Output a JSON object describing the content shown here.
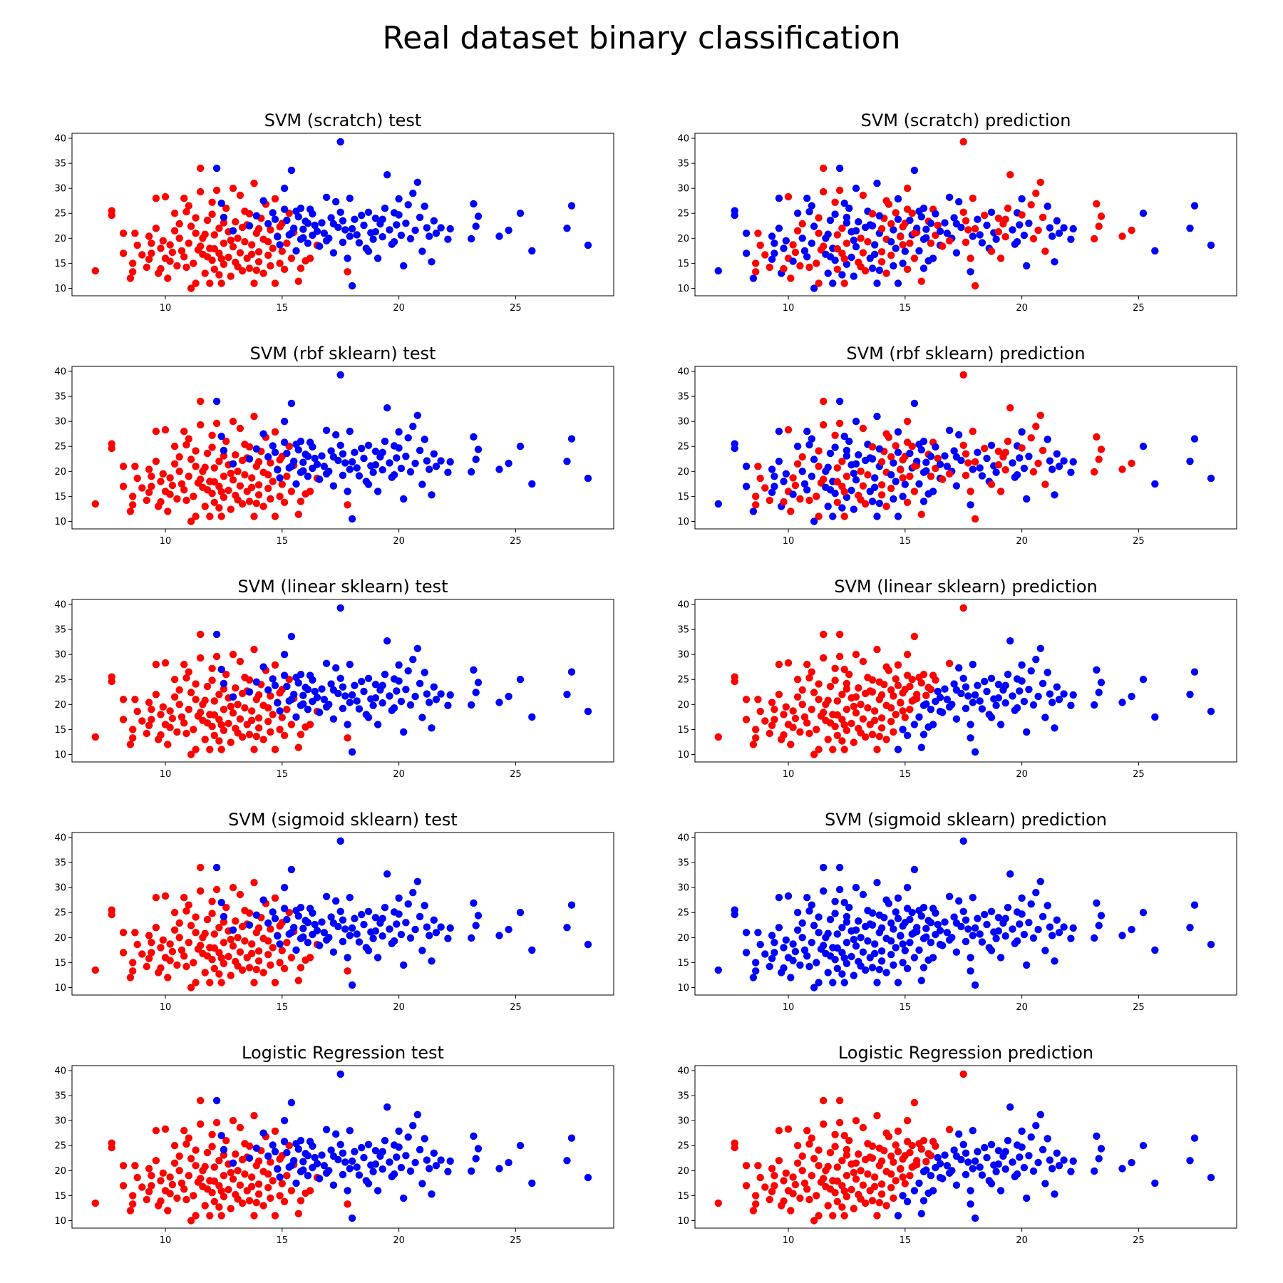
{
  "figure": {
    "title": "Real dataset binary classification"
  },
  "colors": {
    "class_0": "#ff0000",
    "class_1": "#0000ff"
  },
  "chart_data": [
    {
      "type": "scatter",
      "title": "SVM (scratch) test",
      "mode": "truth",
      "xlim": [
        6,
        29.2
      ],
      "ylim": [
        8.5,
        41
      ],
      "xticks": [
        10,
        15,
        20,
        25
      ],
      "yticks": [
        10,
        15,
        20,
        25,
        30,
        35,
        40
      ],
      "grid": false
    },
    {
      "type": "scatter",
      "title": "SVM (scratch) prediction",
      "mode": "random",
      "xlim": [
        6,
        29.2
      ],
      "ylim": [
        8.5,
        41
      ],
      "xticks": [
        10,
        15,
        20,
        25
      ],
      "yticks": [
        10,
        15,
        20,
        25,
        30,
        35,
        40
      ],
      "grid": false
    },
    {
      "type": "scatter",
      "title": "SVM (rbf sklearn) test",
      "mode": "truth",
      "xlim": [
        6,
        29.2
      ],
      "ylim": [
        8.5,
        41
      ],
      "xticks": [
        10,
        15,
        20,
        25
      ],
      "yticks": [
        10,
        15,
        20,
        25,
        30,
        35,
        40
      ],
      "grid": false
    },
    {
      "type": "scatter",
      "title": "SVM (rbf sklearn) prediction",
      "mode": "random",
      "xlim": [
        6,
        29.2
      ],
      "ylim": [
        8.5,
        41
      ],
      "xticks": [
        10,
        15,
        20,
        25
      ],
      "yticks": [
        10,
        15,
        20,
        25,
        30,
        35,
        40
      ],
      "grid": false
    },
    {
      "type": "scatter",
      "title": "SVM (linear sklearn) test",
      "mode": "truth",
      "xlim": [
        6,
        29.2
      ],
      "ylim": [
        8.5,
        41
      ],
      "xticks": [
        10,
        15,
        20,
        25
      ],
      "yticks": [
        10,
        15,
        20,
        25,
        30,
        35,
        40
      ],
      "grid": false
    },
    {
      "type": "scatter",
      "title": "SVM (linear sklearn) prediction",
      "mode": "linear",
      "xlim": [
        6,
        29.2
      ],
      "ylim": [
        8.5,
        41
      ],
      "xticks": [
        10,
        15,
        20,
        25
      ],
      "yticks": [
        10,
        15,
        20,
        25,
        30,
        35,
        40
      ],
      "grid": false
    },
    {
      "type": "scatter",
      "title": "SVM (sigmoid sklearn) test",
      "mode": "truth",
      "xlim": [
        6,
        29.2
      ],
      "ylim": [
        8.5,
        41
      ],
      "xticks": [
        10,
        15,
        20,
        25
      ],
      "yticks": [
        10,
        15,
        20,
        25,
        30,
        35,
        40
      ],
      "grid": false
    },
    {
      "type": "scatter",
      "title": "SVM (sigmoid sklearn) prediction",
      "mode": "all_blue",
      "xlim": [
        6,
        29.2
      ],
      "ylim": [
        8.5,
        41
      ],
      "xticks": [
        10,
        15,
        20,
        25
      ],
      "yticks": [
        10,
        15,
        20,
        25,
        30,
        35,
        40
      ],
      "grid": false
    },
    {
      "type": "scatter",
      "title": "Logistic Regression test",
      "mode": "truth",
      "xlim": [
        6,
        29.2
      ],
      "ylim": [
        8.5,
        41
      ],
      "xticks": [
        10,
        15,
        20,
        25
      ],
      "yticks": [
        10,
        15,
        20,
        25,
        30,
        35,
        40
      ],
      "grid": false
    },
    {
      "type": "scatter",
      "title": "Logistic Regression prediction",
      "mode": "linear",
      "xlim": [
        6,
        29.2
      ],
      "ylim": [
        8.5,
        41
      ],
      "xticks": [
        10,
        15,
        20,
        25
      ],
      "yticks": [
        10,
        15,
        20,
        25,
        30,
        35,
        40
      ],
      "grid": false
    }
  ],
  "points": [
    [
      7.0,
      13.5,
      0
    ],
    [
      7.7,
      25.5,
      0
    ],
    [
      7.7,
      24.6,
      0
    ],
    [
      8.2,
      21.0,
      0
    ],
    [
      8.2,
      17.0,
      0
    ],
    [
      8.5,
      12.0,
      0
    ],
    [
      8.6,
      13.3,
      0
    ],
    [
      8.6,
      15.0,
      0
    ],
    [
      8.7,
      21.0,
      0
    ],
    [
      8.8,
      18.6,
      0
    ],
    [
      9.0,
      16.7,
      0
    ],
    [
      9.2,
      14.2,
      0
    ],
    [
      9.3,
      15.8,
      0
    ],
    [
      9.4,
      19.0,
      0
    ],
    [
      9.4,
      17.0,
      0
    ],
    [
      9.6,
      22.0,
      0
    ],
    [
      9.6,
      28.0,
      0
    ],
    [
      9.7,
      13.0,
      0
    ],
    [
      9.8,
      18.0,
      0
    ],
    [
      9.9,
      19.5,
      0
    ],
    [
      10.0,
      28.3,
      0
    ],
    [
      10.0,
      16.0,
      0
    ],
    [
      10.1,
      12.0,
      0
    ],
    [
      10.2,
      18.7,
      0
    ],
    [
      10.3,
      17.2,
      0
    ],
    [
      10.4,
      21.5,
      0
    ],
    [
      10.5,
      14.5,
      0
    ],
    [
      10.6,
      20.0,
      0
    ],
    [
      10.7,
      17.5,
      0
    ],
    [
      10.8,
      28.0,
      0
    ],
    [
      10.8,
      16.3,
      0
    ],
    [
      10.9,
      25.3,
      0
    ],
    [
      11.0,
      19.0,
      0
    ],
    [
      11.1,
      10.0,
      0
    ],
    [
      11.1,
      22.4,
      0
    ],
    [
      11.2,
      15.0,
      0
    ],
    [
      11.3,
      21.0,
      0
    ],
    [
      11.3,
      11.0,
      0
    ],
    [
      11.4,
      17.7,
      0
    ],
    [
      11.5,
      34.0,
      0
    ],
    [
      11.5,
      29.3,
      0
    ],
    [
      11.6,
      20.0,
      0
    ],
    [
      11.6,
      16.8,
      0
    ],
    [
      11.7,
      13.0,
      0
    ],
    [
      11.8,
      23.6,
      0
    ],
    [
      11.9,
      11.0,
      0
    ],
    [
      11.9,
      18.0,
      0
    ],
    [
      12.0,
      24.8,
      0
    ],
    [
      12.0,
      15.6,
      0
    ],
    [
      12.1,
      20.7,
      0
    ],
    [
      12.1,
      13.8,
      0
    ],
    [
      12.2,
      29.6,
      0
    ],
    [
      12.3,
      17.0,
      0
    ],
    [
      12.3,
      22.0,
      0
    ],
    [
      12.4,
      11.0,
      0
    ],
    [
      12.5,
      19.0,
      0
    ],
    [
      12.5,
      14.8,
      0
    ],
    [
      12.6,
      26.0,
      0
    ],
    [
      12.7,
      16.2,
      0
    ],
    [
      12.7,
      21.3,
      0
    ],
    [
      12.8,
      12.4,
      0
    ],
    [
      12.9,
      30.0,
      0
    ],
    [
      12.9,
      18.3,
      0
    ],
    [
      13.0,
      23.3,
      0
    ],
    [
      13.0,
      15.2,
      0
    ],
    [
      13.1,
      20.0,
      0
    ],
    [
      13.2,
      17.1,
      0
    ],
    [
      13.2,
      28.6,
      0
    ],
    [
      13.3,
      13.5,
      0
    ],
    [
      13.4,
      19.3,
      0
    ],
    [
      13.4,
      25.4,
      0
    ],
    [
      13.5,
      16.0,
      0
    ],
    [
      13.5,
      22.7,
      0
    ],
    [
      13.6,
      14.0,
      0
    ],
    [
      13.7,
      18.7,
      0
    ],
    [
      13.8,
      31.0,
      0
    ],
    [
      13.8,
      11.0,
      0
    ],
    [
      13.9,
      21.0,
      0
    ],
    [
      14.0,
      15.3,
      0
    ],
    [
      14.0,
      17.3,
      0
    ],
    [
      14.1,
      24.0,
      0
    ],
    [
      14.2,
      13.0,
      0
    ],
    [
      14.2,
      19.8,
      0
    ],
    [
      14.3,
      26.8,
      0
    ],
    [
      14.4,
      16.6,
      0
    ],
    [
      14.5,
      21.7,
      0
    ],
    [
      14.5,
      14.5,
      0
    ],
    [
      14.6,
      18.0,
      0
    ],
    [
      14.7,
      27.9,
      0
    ],
    [
      14.7,
      11.0,
      0
    ],
    [
      14.8,
      20.4,
      0
    ],
    [
      14.9,
      15.0,
      0
    ],
    [
      15.0,
      17.4,
      0
    ],
    [
      15.0,
      23.0,
      0
    ],
    [
      15.1,
      13.8,
      0
    ],
    [
      15.2,
      19.0,
      0
    ],
    [
      15.4,
      16.0,
      0
    ],
    [
      15.5,
      21.2,
      0
    ],
    [
      15.7,
      11.4,
      0
    ],
    [
      15.8,
      14.0,
      0
    ],
    [
      16.0,
      15.5,
      0
    ],
    [
      16.2,
      16.0,
      0
    ],
    [
      16.5,
      18.6,
      0
    ],
    [
      17.8,
      13.3,
      0
    ],
    [
      10.4,
      25.0,
      0
    ],
    [
      11.0,
      26.5,
      0
    ],
    [
      9.3,
      20.4,
      0
    ],
    [
      12.0,
      27.2,
      0
    ],
    [
      13.6,
      24.9,
      0
    ],
    [
      10.9,
      14.2,
      0
    ],
    [
      11.5,
      18.4,
      0
    ],
    [
      12.4,
      15.9,
      0
    ],
    [
      13.1,
      14.3,
      0
    ],
    [
      14.0,
      21.9,
      0
    ],
    [
      12.8,
      19.6,
      0
    ],
    [
      11.8,
      16.3,
      0
    ],
    [
      10.2,
      15.4,
      0
    ],
    [
      13.7,
      16.8,
      0
    ],
    [
      12.5,
      23.1,
      0
    ],
    [
      14.4,
      19.3,
      0
    ],
    [
      12.3,
      12.7,
      0
    ],
    [
      13.9,
      13.6,
      0
    ],
    [
      11.3,
      24.1,
      0
    ],
    [
      14.9,
      22.3,
      0
    ],
    [
      10.6,
      22.9,
      0
    ],
    [
      9.8,
      13.9,
      0
    ],
    [
      15.3,
      25.0,
      0
    ],
    [
      12.1,
      17.9,
      0
    ],
    [
      11.7,
      20.8,
      0
    ],
    [
      13.3,
      22.2,
      0
    ],
    [
      12.2,
      34.0,
      1
    ],
    [
      12.4,
      27.0,
      1
    ],
    [
      12.5,
      24.2,
      1
    ],
    [
      12.9,
      21.5,
      1
    ],
    [
      13.6,
      22.5,
      1
    ],
    [
      13.9,
      24.5,
      1
    ],
    [
      14.2,
      27.5,
      1
    ],
    [
      14.4,
      22.9,
      1
    ],
    [
      14.6,
      25.1,
      1
    ],
    [
      14.8,
      20.3,
      1
    ],
    [
      14.9,
      18.7,
      1
    ],
    [
      15.1,
      25.8,
      1
    ],
    [
      15.1,
      30.0,
      1
    ],
    [
      15.2,
      23.6,
      1
    ],
    [
      15.3,
      20.7,
      1
    ],
    [
      15.4,
      33.6,
      1
    ],
    [
      15.5,
      22.0,
      1
    ],
    [
      15.6,
      17.5,
      1
    ],
    [
      15.7,
      24.3,
      1
    ],
    [
      15.8,
      19.8,
      1
    ],
    [
      15.9,
      21.8,
      1
    ],
    [
      16.0,
      23.4,
      1
    ],
    [
      16.1,
      19.0,
      1
    ],
    [
      16.2,
      25.8,
      1
    ],
    [
      16.3,
      20.6,
      1
    ],
    [
      16.4,
      22.6,
      1
    ],
    [
      16.6,
      18.4,
      1
    ],
    [
      16.7,
      23.1,
      1
    ],
    [
      16.8,
      21.0,
      1
    ],
    [
      16.9,
      28.2,
      1
    ],
    [
      17.0,
      20.0,
      1
    ],
    [
      17.1,
      24.1,
      1
    ],
    [
      17.2,
      17.1,
      1
    ],
    [
      17.3,
      27.3,
      1
    ],
    [
      17.4,
      22.2,
      1
    ],
    [
      17.5,
      39.3,
      1
    ],
    [
      17.5,
      25.2,
      1
    ],
    [
      17.6,
      19.2,
      1
    ],
    [
      17.7,
      21.7,
      1
    ],
    [
      17.8,
      16.0,
      1
    ],
    [
      17.9,
      28.0,
      1
    ],
    [
      18.0,
      10.5,
      1
    ],
    [
      18.1,
      23.8,
      1
    ],
    [
      18.2,
      20.7,
      1
    ],
    [
      18.3,
      19.1,
      1
    ],
    [
      18.5,
      22.6,
      1
    ],
    [
      18.6,
      18.0,
      1
    ],
    [
      18.7,
      25.2,
      1
    ],
    [
      18.8,
      21.1,
      1
    ],
    [
      18.9,
      19.8,
      1
    ],
    [
      19.0,
      24.0,
      1
    ],
    [
      19.1,
      16.0,
      1
    ],
    [
      19.2,
      22.9,
      1
    ],
    [
      19.3,
      20.3,
      1
    ],
    [
      19.4,
      26.0,
      1
    ],
    [
      19.5,
      32.7,
      1
    ],
    [
      19.6,
      21.7,
      1
    ],
    [
      19.7,
      18.8,
      1
    ],
    [
      19.8,
      25.1,
      1
    ],
    [
      19.9,
      22.7,
      1
    ],
    [
      20.0,
      27.9,
      1
    ],
    [
      20.1,
      20.6,
      1
    ],
    [
      20.2,
      14.5,
      1
    ],
    [
      20.3,
      23.0,
      1
    ],
    [
      20.4,
      26.7,
      1
    ],
    [
      20.5,
      19.9,
      1
    ],
    [
      20.6,
      29.0,
      1
    ],
    [
      20.7,
      21.6,
      1
    ],
    [
      20.8,
      31.2,
      1
    ],
    [
      20.9,
      24.2,
      1
    ],
    [
      21.0,
      17.4,
      1
    ],
    [
      21.1,
      26.4,
      1
    ],
    [
      21.2,
      22.1,
      1
    ],
    [
      21.3,
      20.4,
      1
    ],
    [
      21.4,
      15.3,
      1
    ],
    [
      21.6,
      21.0,
      1
    ],
    [
      21.8,
      22.1,
      1
    ],
    [
      22.1,
      19.8,
      1
    ],
    [
      22.2,
      21.9,
      1
    ],
    [
      23.1,
      19.9,
      1
    ],
    [
      23.2,
      26.9,
      1
    ],
    [
      23.3,
      22.4,
      1
    ],
    [
      23.4,
      24.4,
      1
    ],
    [
      24.3,
      20.4,
      1
    ],
    [
      24.7,
      21.6,
      1
    ],
    [
      25.2,
      25.0,
      1
    ],
    [
      25.7,
      17.5,
      1
    ],
    [
      27.2,
      22.0,
      1
    ],
    [
      27.4,
      26.5,
      1
    ],
    [
      28.1,
      18.6,
      1
    ],
    [
      16.1,
      23.0,
      1
    ],
    [
      16.5,
      21.4,
      1
    ],
    [
      15.8,
      26.0,
      1
    ],
    [
      18.4,
      24.6,
      1
    ],
    [
      19.0,
      21.3,
      1
    ],
    [
      17.6,
      23.5,
      1
    ],
    [
      16.9,
      19.5,
      1
    ],
    [
      15.4,
      21.0,
      1
    ],
    [
      20.0,
      24.7,
      1
    ],
    [
      18.7,
      17.4,
      1
    ],
    [
      17.2,
      22.9,
      1
    ],
    [
      19.8,
      19.3,
      1
    ],
    [
      21.5,
      23.5,
      1
    ],
    [
      16.3,
      24.9,
      1
    ],
    [
      15.9,
      20.1,
      1
    ],
    [
      14.7,
      23.8,
      1
    ],
    [
      15.6,
      25.4,
      1
    ],
    [
      17.9,
      20.4,
      1
    ],
    [
      19.3,
      23.8,
      1
    ],
    [
      18.0,
      21.9,
      1
    ]
  ]
}
